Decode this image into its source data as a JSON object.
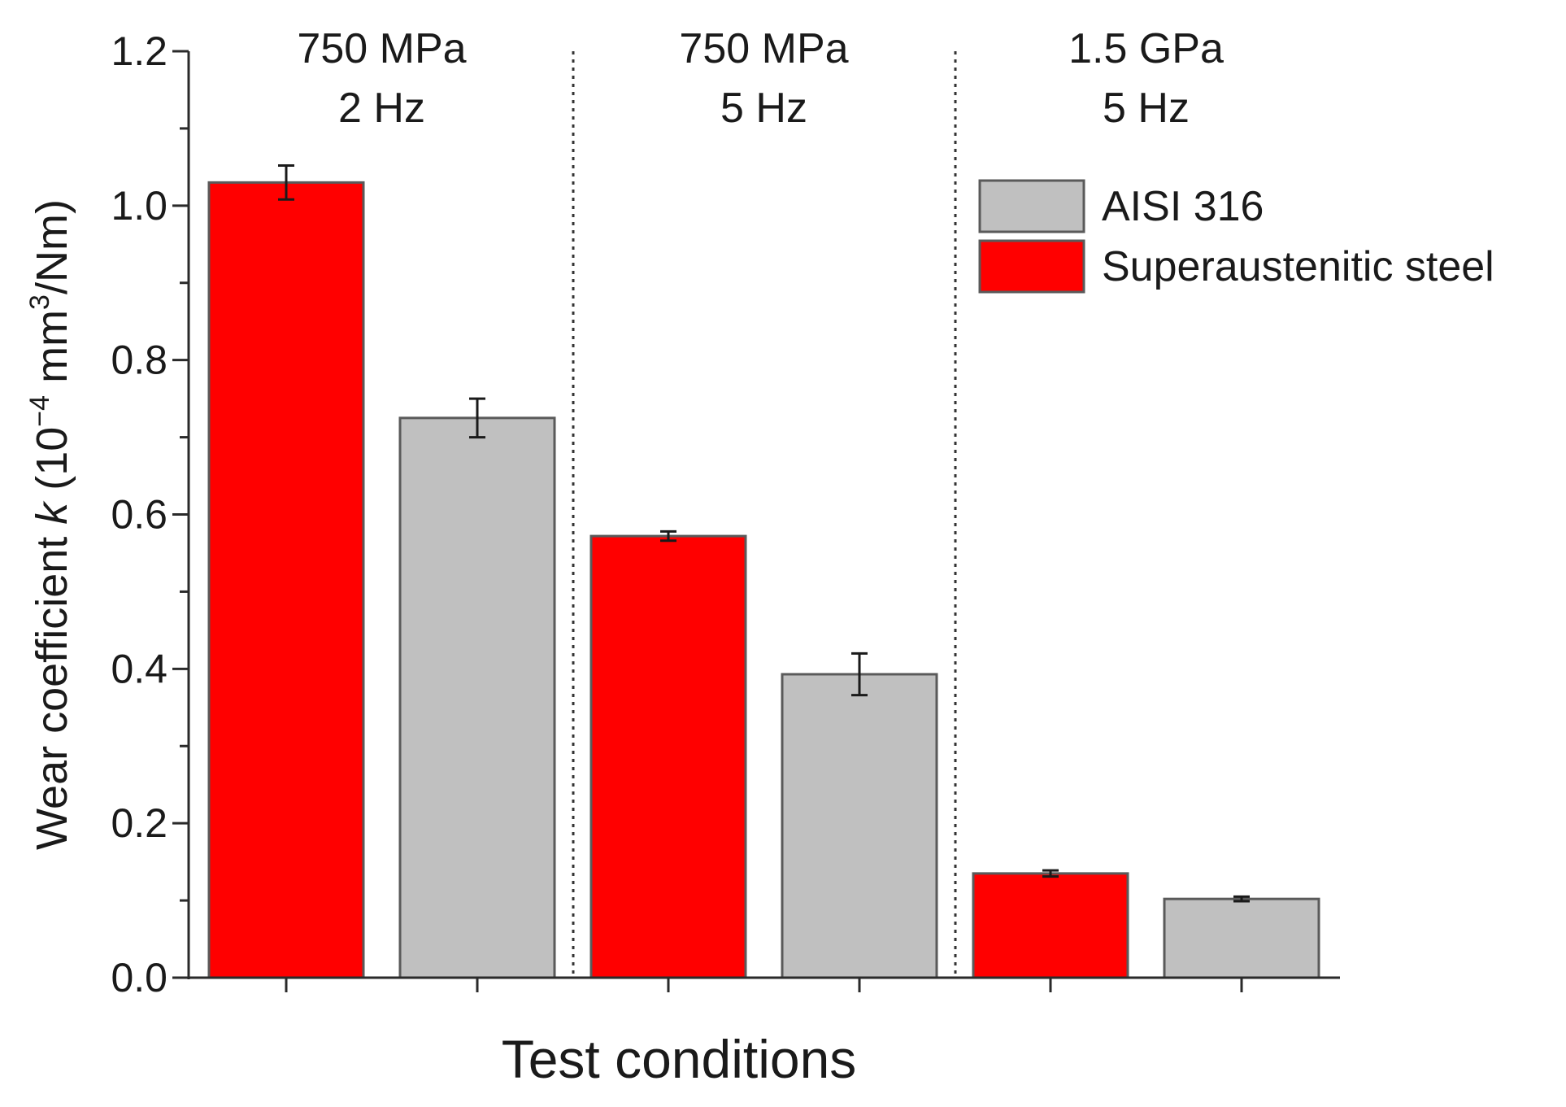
{
  "chart_data": {
    "type": "bar",
    "xlabel": "Test conditions",
    "ylabel": {
      "prefix": "Wear coefficient ",
      "italic": "k",
      "pre_exp": " (10",
      "exp1": "−4",
      "mid": " mm",
      "exp2": "3",
      "suffix": "/Nm)"
    },
    "ylim": [
      0,
      1.2
    ],
    "yticks": [
      "0.0",
      "0.2",
      "0.4",
      "0.6",
      "0.8",
      "1.0",
      "1.2"
    ],
    "grid": false,
    "legend_position": "top-right",
    "groups": [
      {
        "line1": "750 MPa",
        "line2": "2 Hz"
      },
      {
        "line1": "750 MPa",
        "line2": "5 Hz"
      },
      {
        "line1": "1.5 GPa",
        "line2": "5 Hz"
      }
    ],
    "series": [
      {
        "name": "AISI 316",
        "color": "#c0c0c0",
        "values": [
          0.725,
          0.393,
          0.102
        ],
        "errors": [
          0.025,
          0.027,
          0.003
        ]
      },
      {
        "name": "Superaustenitic steel",
        "color": "#ff0000",
        "values": [
          1.03,
          0.572,
          0.135
        ],
        "errors": [
          0.022,
          0.006,
          0.004
        ]
      }
    ],
    "bar_order": [
      "Superaustenitic steel",
      "AISI 316"
    ]
  }
}
